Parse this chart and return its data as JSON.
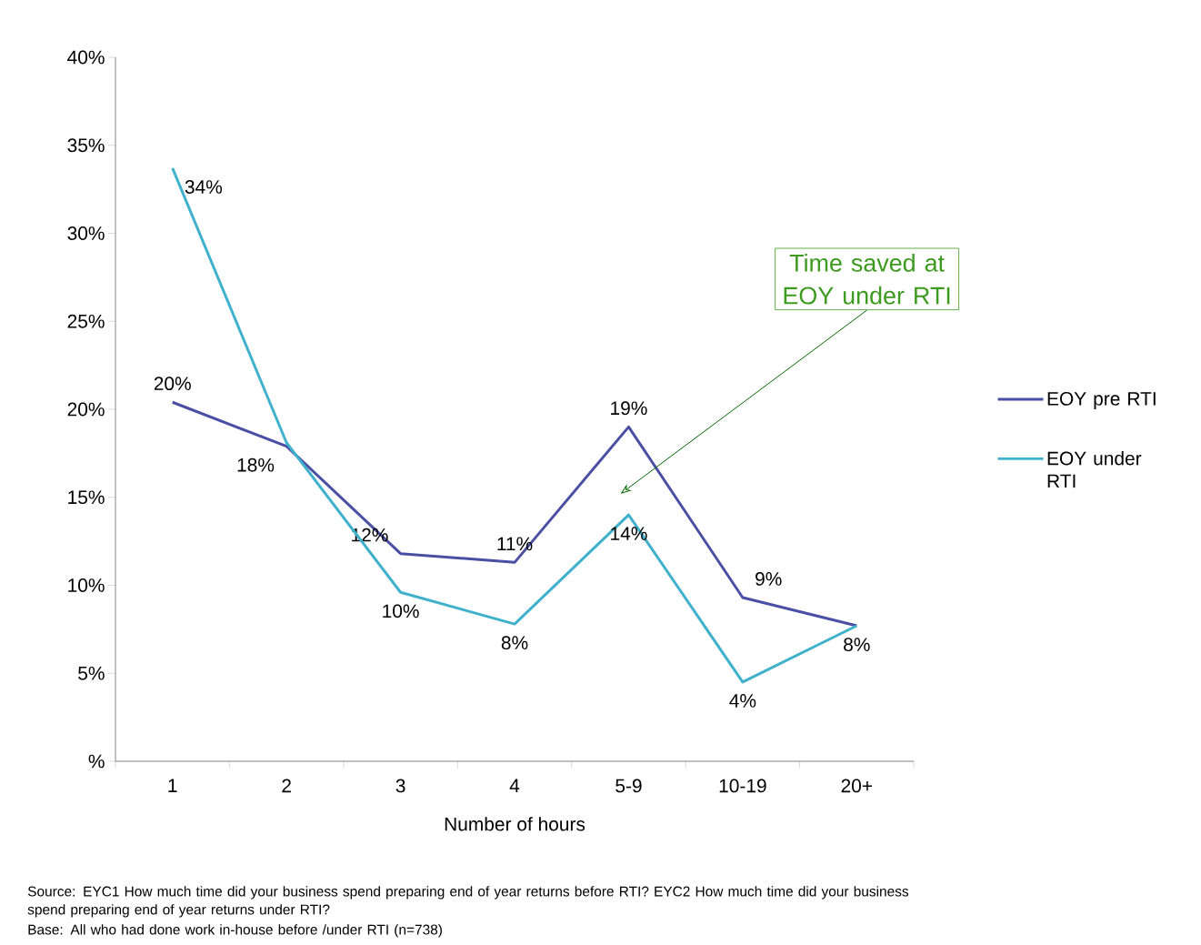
{
  "chart_data": {
    "type": "line",
    "categories": [
      "1",
      "2",
      "3",
      "4",
      "5-9",
      "10-19",
      "20+"
    ],
    "series": [
      {
        "name": "EOY pre RTI",
        "color": "#4a4fa3",
        "values": [
          20.4,
          17.9,
          11.8,
          11.3,
          19.0,
          9.3,
          7.7
        ],
        "value_labels": [
          "20%",
          "18%",
          "12%",
          "11%",
          "19%",
          "9%",
          "8%"
        ]
      },
      {
        "name": "EOY under RTI",
        "color": "#3fb1cc",
        "values": [
          33.7,
          18.1,
          9.6,
          7.8,
          14.0,
          4.5,
          7.7
        ],
        "value_labels": [
          "34%",
          null,
          "10%",
          "8%",
          "14%",
          "4%",
          null
        ]
      }
    ],
    "xlabel": "Number of hours",
    "ylim": [
      0,
      40
    ],
    "yticks": [
      {
        "value": 0,
        "label": "%"
      },
      {
        "value": 5,
        "label": "5%"
      },
      {
        "value": 10,
        "label": "10%"
      },
      {
        "value": 15,
        "label": "15%"
      },
      {
        "value": 20,
        "label": "20%"
      },
      {
        "value": 25,
        "label": "25%"
      },
      {
        "value": 30,
        "label": "30%"
      },
      {
        "value": 35,
        "label": "35%"
      },
      {
        "value": 40,
        "label": "40%"
      }
    ],
    "grid": false,
    "legend": "right",
    "marker": "none",
    "line_style": "solid",
    "annotations": [
      "Time saved at EOY under RTI",
      "Source: EYC1 How much time did your business spend preparing end of year returns before RTI? EYC2 How much time did your business spend preparing end of year returns under RTI?",
      "Base: All who had done work in-house before /under RTI (n=738)"
    ]
  }
}
